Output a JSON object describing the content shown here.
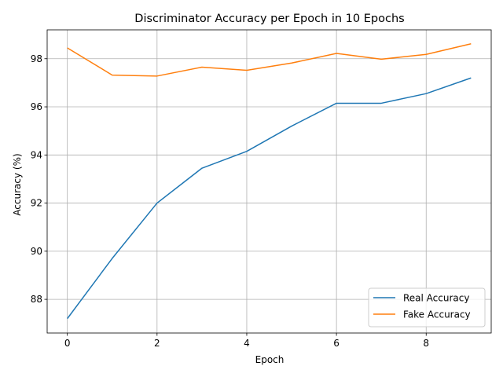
{
  "chart_data": {
    "type": "line",
    "title": "Discriminator Accuracy per Epoch in 10 Epochs",
    "xlabel": "Epoch",
    "ylabel": "Accuracy (%)",
    "x": [
      0,
      1,
      2,
      3,
      4,
      5,
      6,
      7,
      8,
      9
    ],
    "xlim": [
      -0.45,
      9.45
    ],
    "ylim": [
      86.6,
      99.2
    ],
    "xticks": [
      0,
      2,
      4,
      6,
      8
    ],
    "yticks": [
      88,
      90,
      92,
      94,
      96,
      98
    ],
    "grid": true,
    "legend_position": "lower-right",
    "series": [
      {
        "name": "Real Accuracy",
        "color": "#1f77b4",
        "values": [
          87.2,
          89.7,
          92.0,
          93.45,
          94.15,
          95.2,
          96.15,
          96.15,
          96.55,
          97.2
        ]
      },
      {
        "name": "Fake Accuracy",
        "color": "#ff7f0e",
        "values": [
          98.45,
          97.32,
          97.28,
          97.65,
          97.52,
          97.82,
          98.22,
          97.98,
          98.18,
          98.62
        ]
      }
    ]
  }
}
